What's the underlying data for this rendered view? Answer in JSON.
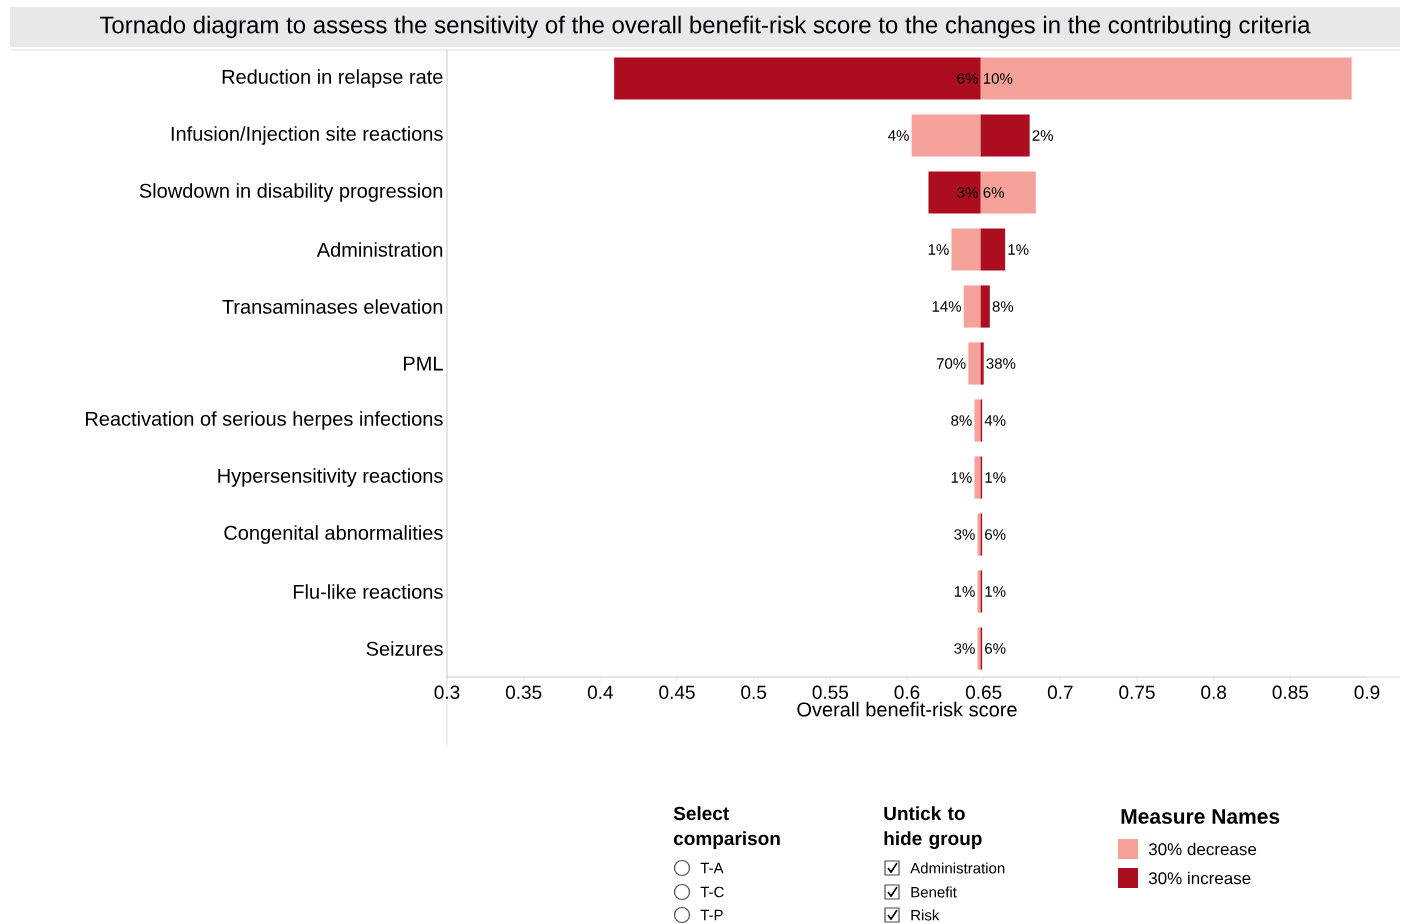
{
  "chart_data": {
    "type": "bar",
    "orientation": "horizontal",
    "title": "Tornado diagram to assess the sensitivity of the overall benefit-risk score to the changes in the contributing criteria",
    "xlabel": "Overall benefit-risk score",
    "legend_title": "Measure Names",
    "legend": "bottom right",
    "categories": [
      "Reduction in relapse rate",
      "Infusion/Injection site reactions",
      "Slowdown in disability progression",
      "Administration",
      "Transaminases elevation",
      "PML",
      "Reactivation of serious herpes infections",
      "Hypersensitivity reactions",
      "Congenital abnormalities",
      "Flu-like reactions",
      "Seizures"
    ],
    "series": [
      {
        "name": "30% decrease",
        "color": "#f4a19a",
        "base": [
          0.648,
          0.603,
          0.648,
          0.629,
          0.637,
          0.64,
          0.644,
          0.644,
          0.646,
          0.646,
          0.646
        ],
        "values": [
          0.242,
          0.045,
          0.036,
          0.019,
          0.011,
          0.008,
          0.004,
          0.004,
          0.002,
          0.002,
          0.002
        ]
      },
      {
        "name": "30% increase",
        "color": "#ad0e1f",
        "base": [
          0.409,
          0.648,
          0.614,
          0.648,
          0.648,
          0.648,
          0.648,
          0.648,
          0.648,
          0.648,
          0.648
        ],
        "values": [
          0.239,
          0.032,
          0.034,
          0.016,
          0.006,
          0.002,
          0.001,
          0.001,
          0.001,
          0.001,
          0.001
        ]
      }
    ],
    "xlim": [
      0.3,
      0.9
    ],
    "xticks": [
      0.3,
      0.35,
      0.4,
      0.45,
      0.5,
      0.55,
      0.6,
      0.65,
      0.7,
      0.75,
      0.8,
      0.85,
      0.9
    ],
    "annotations": [
      "Select comparison",
      "T-A",
      "T-C",
      "T-P",
      "Untick to hide group",
      "Administration",
      "Benefit",
      "Risk",
      {
        "text": "6%",
        "x": 0.648,
        "y": "Reduction in relapse rate"
      },
      {
        "text": "10%",
        "x": 0.648,
        "y": "Reduction in relapse rate"
      },
      {
        "text": "4%",
        "x": 0.603,
        "y": "Infusion/Injection site reactions"
      },
      {
        "text": "2%",
        "x": 0.68,
        "y": "Infusion/Injection site reactions"
      },
      {
        "text": "3%",
        "x": 0.648,
        "y": "Slowdown in disability progression"
      },
      {
        "text": "6%",
        "x": 0.648,
        "y": "Slowdown in disability progression"
      },
      {
        "text": "1%",
        "x": 0.629,
        "y": "Administration"
      },
      {
        "text": "1%",
        "x": 0.664,
        "y": "Administration"
      },
      {
        "text": "14%",
        "x": 0.637,
        "y": "Transaminases elevation"
      },
      {
        "text": "8%",
        "x": 0.654,
        "y": "Transaminases elevation"
      },
      {
        "text": "70%",
        "x": 0.64,
        "y": "PML"
      },
      {
        "text": "38%",
        "x": 0.65,
        "y": "PML"
      },
      {
        "text": "8%",
        "x": 0.644,
        "y": "Reactivation of serious herpes infections"
      },
      {
        "text": "4%",
        "x": 0.649,
        "y": "Reactivation of serious herpes infections"
      },
      {
        "text": "1%",
        "x": 0.644,
        "y": "Hypersensitivity reactions"
      },
      {
        "text": "1%",
        "x": 0.649,
        "y": "Hypersensitivity reactions"
      },
      {
        "text": "3%",
        "x": 0.646,
        "y": "Congenital abnormalities"
      },
      {
        "text": "6%",
        "x": 0.649,
        "y": "Congenital abnormalities"
      },
      {
        "text": "1%",
        "x": 0.646,
        "y": "Flu-like reactions"
      },
      {
        "text": "1%",
        "x": 0.649,
        "y": "Flu-like reactions"
      },
      {
        "text": "3%",
        "x": 0.646,
        "y": "Seizures"
      },
      {
        "text": "6%",
        "x": 0.649,
        "y": "Seizures"
      }
    ]
  }
}
